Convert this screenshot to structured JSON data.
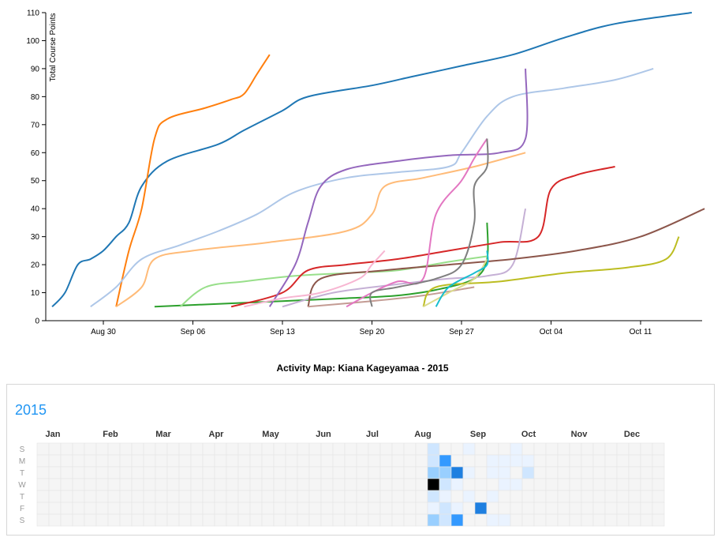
{
  "chart_data": [
    {
      "type": "line",
      "ylabel": "Total Course Points",
      "xlabel": "",
      "x_tick_labels": [
        "Aug 30",
        "Sep 06",
        "Sep 13",
        "Sep 20",
        "Sep 27",
        "Oct 04",
        "Oct 11"
      ],
      "y_ticks": [
        0,
        10,
        20,
        30,
        40,
        50,
        60,
        70,
        80,
        90,
        100,
        110
      ],
      "ylim": [
        0,
        110
      ],
      "x_range_days_note": "",
      "grid": false,
      "series": [
        {
          "color": "#1f77b4",
          "x": [
            "Aug 26",
            "Aug 27",
            "Aug 28",
            "Aug 29",
            "Aug 30",
            "Aug 31",
            "Sep 01",
            "Sep 02",
            "Sep 04",
            "Sep 08",
            "Sep 10",
            "Sep 13",
            "Sep 15",
            "Sep 20",
            "Sep 23",
            "Sep 27",
            "Oct 01",
            "Oct 05",
            "Oct 09",
            "Oct 15"
          ],
          "y": [
            5,
            10,
            20,
            22,
            25,
            30,
            35,
            48,
            57,
            63,
            68,
            75,
            80,
            84,
            87,
            91,
            95,
            101,
            106,
            110
          ]
        },
        {
          "color": "#ff7f0e",
          "x": [
            "Aug 31",
            "Sep 01",
            "Sep 02",
            "Sep 03",
            "Sep 04",
            "Sep 07",
            "Sep 09",
            "Sep 10",
            "Sep 11",
            "Sep 12"
          ],
          "y": [
            5,
            25,
            40,
            65,
            72,
            76,
            79,
            81,
            88,
            95
          ]
        },
        {
          "color": "#aec7e8",
          "x": [
            "Aug 29",
            "Aug 31",
            "Sep 02",
            "Sep 05",
            "Sep 08",
            "Sep 11",
            "Sep 14",
            "Sep 18",
            "Sep 22",
            "Sep 26",
            "Sep 27",
            "Sep 29",
            "Oct 01",
            "Oct 05",
            "Oct 09",
            "Oct 12"
          ],
          "y": [
            5,
            12,
            22,
            27,
            32,
            38,
            46,
            51,
            53,
            55,
            60,
            73,
            80,
            83,
            86,
            90
          ]
        },
        {
          "color": "#ffbb78",
          "x": [
            "Aug 31",
            "Sep 02",
            "Sep 03",
            "Sep 06",
            "Sep 12",
            "Sep 18",
            "Sep 20",
            "Sep 21",
            "Sep 24",
            "Sep 28",
            "Oct 02"
          ],
          "y": [
            5,
            12,
            22,
            25,
            28,
            32,
            38,
            48,
            51,
            55,
            60
          ]
        },
        {
          "color": "#2ca02c",
          "x": [
            "Sep 03",
            "Sep 08",
            "Sep 13",
            "Sep 18",
            "Sep 22",
            "Sep 25",
            "Sep 28",
            "Sep 29",
            "Sep 29"
          ],
          "y": [
            5,
            6,
            7,
            8,
            9,
            11,
            15,
            22,
            35
          ]
        },
        {
          "color": "#98df8a",
          "x": [
            "Sep 05",
            "Sep 07",
            "Sep 10",
            "Sep 14",
            "Sep 18",
            "Sep 22",
            "Sep 26",
            "Sep 29"
          ],
          "y": [
            5,
            12,
            14,
            16,
            17,
            18,
            21,
            23
          ]
        },
        {
          "color": "#d62728",
          "x": [
            "Sep 09",
            "Sep 13",
            "Sep 15",
            "Sep 18",
            "Sep 22",
            "Sep 26",
            "Sep 30",
            "Oct 03",
            "Oct 04",
            "Oct 06",
            "Oct 09"
          ],
          "y": [
            5,
            10,
            18,
            20,
            22,
            25,
            28,
            30,
            47,
            52,
            55
          ]
        },
        {
          "color": "#9467bd",
          "x": [
            "Sep 12",
            "Sep 14",
            "Sep 15",
            "Sep 16",
            "Sep 18",
            "Sep 22",
            "Sep 26",
            "Sep 30",
            "Oct 02",
            "Oct 02"
          ],
          "y": [
            5,
            20,
            35,
            48,
            54,
            57,
            59,
            60,
            65,
            90
          ]
        },
        {
          "color": "#c5b0d5",
          "x": [
            "Sep 13",
            "Sep 17",
            "Sep 22",
            "Sep 26",
            "Sep 29",
            "Oct 01",
            "Oct 02"
          ],
          "y": [
            5,
            10,
            13,
            15,
            16,
            20,
            40
          ]
        },
        {
          "color": "#8c564b",
          "x": [
            "Sep 15",
            "Sep 16",
            "Sep 21",
            "Sep 26",
            "Oct 01",
            "Oct 06",
            "Oct 11",
            "Oct 16"
          ],
          "y": [
            5,
            15,
            18,
            20,
            22,
            25,
            30,
            40
          ]
        },
        {
          "color": "#c49c94",
          "x": [
            "Sep 15",
            "Sep 20",
            "Sep 24",
            "Sep 28"
          ],
          "y": [
            5,
            7,
            9,
            12
          ]
        },
        {
          "color": "#e377c2",
          "x": [
            "Sep 18",
            "Sep 20",
            "Sep 22",
            "Sep 24",
            "Sep 25",
            "Sep 27",
            "Sep 28",
            "Sep 29"
          ],
          "y": [
            5,
            10,
            14,
            15,
            38,
            50,
            58,
            65
          ]
        },
        {
          "color": "#f7b6d2",
          "x": [
            "Sep 10",
            "Sep 13",
            "Sep 16",
            "Sep 19",
            "Sep 20",
            "Sep 21"
          ],
          "y": [
            5,
            8,
            10,
            15,
            20,
            25
          ]
        },
        {
          "color": "#7f7f7f",
          "x": [
            "Sep 20",
            "Sep 20",
            "Sep 22",
            "Sep 25",
            "Sep 27",
            "Sep 28",
            "Sep 28",
            "Sep 29",
            "Sep 29"
          ],
          "y": [
            5,
            10,
            12,
            15,
            20,
            35,
            48,
            55,
            65
          ]
        },
        {
          "color": "#bcbd22",
          "x": [
            "Sep 24",
            "Sep 25",
            "Sep 30",
            "Oct 05",
            "Oct 10",
            "Oct 13",
            "Oct 14"
          ],
          "y": [
            5,
            12,
            14,
            17,
            19,
            22,
            30
          ]
        },
        {
          "color": "#dbdb8d",
          "x": [
            "Sep 24",
            "Sep 26",
            "Sep 28",
            "Sep 29"
          ],
          "y": [
            5,
            10,
            15,
            22
          ]
        },
        {
          "color": "#17becf",
          "x": [
            "Sep 25",
            "Sep 26",
            "Sep 28",
            "Sep 29",
            "Sep 29"
          ],
          "y": [
            5,
            12,
            17,
            20,
            25
          ]
        }
      ]
    },
    {
      "type": "heatmap",
      "title": "Activity Map: Kiana Kageyamaa - 2015",
      "year": "2015",
      "months": [
        "Jan",
        "Feb",
        "Mar",
        "Apr",
        "May",
        "Jun",
        "Jul",
        "Aug",
        "Sep",
        "Oct",
        "Nov",
        "Dec"
      ],
      "day_labels": [
        "S",
        "M",
        "T",
        "W",
        "T",
        "F",
        "S"
      ],
      "scale_colors": [
        "#f5f5f5",
        "#eaf3ff",
        "#cfe6ff",
        "#99cfff",
        "#3399ff",
        "#1e7fe0",
        "#000000"
      ],
      "cells": [
        {
          "week": 33,
          "day": 0,
          "level": 2
        },
        {
          "week": 33,
          "day": 1,
          "level": 2
        },
        {
          "week": 33,
          "day": 2,
          "level": 3
        },
        {
          "week": 33,
          "day": 3,
          "level": 6
        },
        {
          "week": 33,
          "day": 4,
          "level": 2
        },
        {
          "week": 33,
          "day": 5,
          "level": 1
        },
        {
          "week": 33,
          "day": 6,
          "level": 3
        },
        {
          "week": 34,
          "day": 1,
          "level": 4
        },
        {
          "week": 34,
          "day": 2,
          "level": 3
        },
        {
          "week": 34,
          "day": 3,
          "level": 2
        },
        {
          "week": 34,
          "day": 4,
          "level": 1
        },
        {
          "week": 34,
          "day": 5,
          "level": 2
        },
        {
          "week": 34,
          "day": 6,
          "level": 2
        },
        {
          "week": 35,
          "day": 2,
          "level": 5
        },
        {
          "week": 35,
          "day": 3,
          "level": 1
        },
        {
          "week": 35,
          "day": 5,
          "level": 1
        },
        {
          "week": 35,
          "day": 6,
          "level": 4
        },
        {
          "week": 36,
          "day": 0,
          "level": 1
        },
        {
          "week": 36,
          "day": 2,
          "level": 1
        },
        {
          "week": 36,
          "day": 4,
          "level": 1
        },
        {
          "week": 37,
          "day": 5,
          "level": 5
        },
        {
          "week": 38,
          "day": 1,
          "level": 1
        },
        {
          "week": 38,
          "day": 2,
          "level": 1
        },
        {
          "week": 38,
          "day": 4,
          "level": 1
        },
        {
          "week": 38,
          "day": 6,
          "level": 1
        },
        {
          "week": 39,
          "day": 1,
          "level": 1
        },
        {
          "week": 39,
          "day": 2,
          "level": 1
        },
        {
          "week": 39,
          "day": 3,
          "level": 1
        },
        {
          "week": 39,
          "day": 6,
          "level": 1
        },
        {
          "week": 40,
          "day": 0,
          "level": 1
        },
        {
          "week": 40,
          "day": 1,
          "level": 1
        },
        {
          "week": 40,
          "day": 3,
          "level": 1
        },
        {
          "week": 41,
          "day": 1,
          "level": 1
        },
        {
          "week": 41,
          "day": 2,
          "level": 2
        }
      ]
    }
  ]
}
